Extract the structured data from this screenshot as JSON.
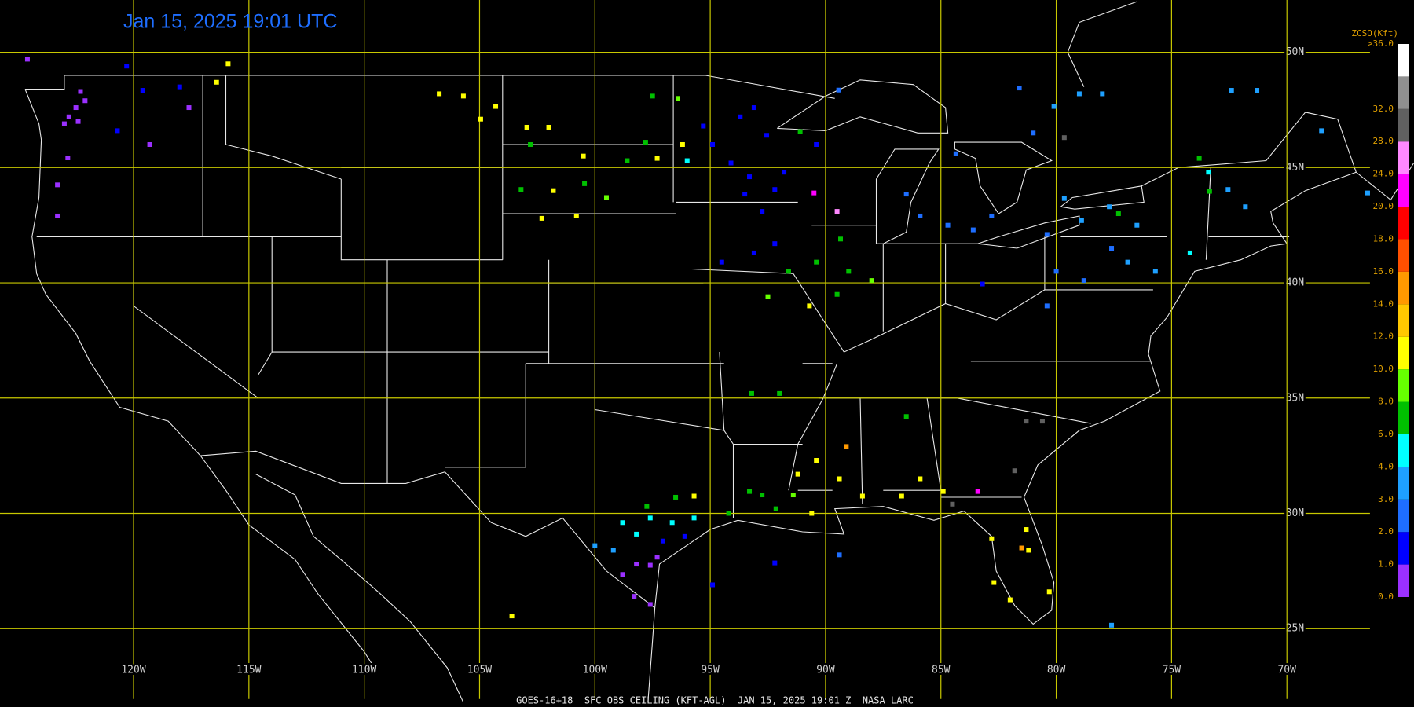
{
  "map": {
    "title": "Jan 15, 2025 19:01 UTC",
    "footer": "GOES-16+18  SFC OBS CEILING (KFT-AGL)  JAN 15, 2025 19:01 Z  NASA LARC",
    "xlim": [
      -125.79,
      -64.49
    ],
    "ylim": [
      21.6,
      52.27
    ],
    "lon_ticks": [
      {
        "value": -120,
        "label": "120W"
      },
      {
        "value": -115,
        "label": "115W"
      },
      {
        "value": -110,
        "label": "110W"
      },
      {
        "value": -105,
        "label": "105W"
      },
      {
        "value": -100,
        "label": "100W"
      },
      {
        "value": -95,
        "label": "95W"
      },
      {
        "value": -90,
        "label": "90W"
      },
      {
        "value": -85,
        "label": "85W"
      },
      {
        "value": -80,
        "label": "80W"
      },
      {
        "value": -75,
        "label": "75W"
      },
      {
        "value": -70,
        "label": "70W"
      }
    ],
    "lat_ticks": [
      {
        "value": 50,
        "label": "50N"
      },
      {
        "value": 45,
        "label": "45N"
      },
      {
        "value": 40,
        "label": "40N"
      },
      {
        "value": 35,
        "label": "35N"
      },
      {
        "value": 30,
        "label": "30N"
      },
      {
        "value": 25,
        "label": "25N"
      }
    ],
    "legend": {
      "title": "ZCSO(Kft)",
      "labels": [
        {
          "value": 0,
          "label": "0.0"
        },
        {
          "value": 1,
          "label": "1.0"
        },
        {
          "value": 2,
          "label": "2.0"
        },
        {
          "value": 3,
          "label": "3.0"
        },
        {
          "value": 4,
          "label": "4.0"
        },
        {
          "value": 6,
          "label": "6.0"
        },
        {
          "value": 8,
          "label": "8.0"
        },
        {
          "value": 10,
          "label": "10.0"
        },
        {
          "value": 12,
          "label": "12.0"
        },
        {
          "value": 14,
          "label": "14.0"
        },
        {
          "value": 16,
          "label": "16.0"
        },
        {
          "value": 18,
          "label": "18.0"
        },
        {
          "value": 20,
          "label": "20.0"
        },
        {
          "value": 24,
          "label": "24.0"
        },
        {
          "value": 28,
          "label": "28.0"
        },
        {
          "value": 32,
          "label": "32.0"
        },
        {
          "value": 36,
          "label": ">36.0"
        }
      ],
      "colors": [
        "#9b30ff",
        "#0000ff",
        "#1e6eff",
        "#1ea0ff",
        "#00ffff",
        "#00c000",
        "#66ff00",
        "#ffff00",
        "#ffc800",
        "#ff9900",
        "#ff5000",
        "#ff0000",
        "#ff00ff",
        "#ff88ff",
        "#606060",
        "#909090",
        "#ffffff"
      ]
    },
    "stations": [
      [
        -122.3,
        48.3,
        0.5
      ],
      [
        -122.5,
        47.6,
        0.5
      ],
      [
        -122.8,
        47.2,
        0.5
      ],
      [
        -123.0,
        46.9,
        0.5
      ],
      [
        -122.4,
        47.0,
        0.5
      ],
      [
        -122.1,
        47.9,
        0.5
      ],
      [
        -122.85,
        45.42,
        0.5
      ],
      [
        -123.3,
        44.25,
        0.5
      ],
      [
        -123.3,
        42.9,
        0.5
      ],
      [
        -117.6,
        47.6,
        0.5
      ],
      [
        -119.3,
        46.0,
        0.5
      ],
      [
        -124.6,
        49.7,
        0.5
      ],
      [
        -120.7,
        46.6,
        1.5
      ],
      [
        -119.6,
        48.35,
        1.5
      ],
      [
        -118.0,
        48.5,
        1.5
      ],
      [
        -120.3,
        49.4,
        1.5
      ],
      [
        -116.4,
        48.7,
        11
      ],
      [
        -115.9,
        49.5,
        11
      ],
      [
        -106.75,
        48.2,
        11
      ],
      [
        -105.7,
        48.1,
        11
      ],
      [
        -104.3,
        47.65,
        11
      ],
      [
        -104.95,
        47.1,
        11
      ],
      [
        -102.95,
        46.75,
        11
      ],
      [
        -102.0,
        46.75,
        11
      ],
      [
        -100.5,
        45.5,
        11
      ],
      [
        -102.8,
        46.0,
        7
      ],
      [
        -103.2,
        44.05,
        7
      ],
      [
        -101.8,
        44.0,
        11
      ],
      [
        -100.45,
        44.3,
        7
      ],
      [
        -102.3,
        42.8,
        11
      ],
      [
        -100.8,
        42.9,
        11
      ],
      [
        -98.6,
        45.3,
        7
      ],
      [
        -99.5,
        43.7,
        9
      ],
      [
        -97.5,
        48.1,
        7
      ],
      [
        -96.4,
        48.0,
        9
      ],
      [
        -97.8,
        46.1,
        7
      ],
      [
        -97.3,
        45.4,
        11
      ],
      [
        -96.2,
        46.0,
        11
      ],
      [
        -96.0,
        45.3,
        5
      ],
      [
        -95.3,
        46.8,
        1.5
      ],
      [
        -94.9,
        46.0,
        1.5
      ],
      [
        -94.1,
        45.2,
        1.5
      ],
      [
        -93.7,
        47.2,
        1.5
      ],
      [
        -93.1,
        47.6,
        1.5
      ],
      [
        -92.55,
        46.4,
        1.5
      ],
      [
        -93.3,
        44.6,
        1.5
      ],
      [
        -93.5,
        43.85,
        1.5
      ],
      [
        -92.75,
        43.1,
        1.5
      ],
      [
        -92.2,
        41.7,
        1.5
      ],
      [
        -93.1,
        41.3,
        1.5
      ],
      [
        -94.5,
        40.9,
        1.5
      ],
      [
        -91.1,
        46.56,
        7
      ],
      [
        -91.8,
        44.8,
        1.5
      ],
      [
        -92.2,
        44.05,
        1.5
      ],
      [
        -90.4,
        46.0,
        1.5
      ],
      [
        -89.43,
        48.36,
        2.5
      ],
      [
        -90.5,
        43.9,
        22
      ],
      [
        -89.5,
        43.1,
        26
      ],
      [
        -89.35,
        41.9,
        7
      ],
      [
        -90.4,
        40.9,
        7
      ],
      [
        -89.0,
        40.5,
        7
      ],
      [
        -89.5,
        39.5,
        7
      ],
      [
        -92.5,
        39.4,
        9
      ],
      [
        -90.7,
        39.0,
        11
      ],
      [
        -88.0,
        40.1,
        9
      ],
      [
        -91.6,
        40.5,
        7
      ],
      [
        -86.5,
        43.85,
        2.5
      ],
      [
        -85.9,
        42.9,
        2.5
      ],
      [
        -84.7,
        42.5,
        2.5
      ],
      [
        -84.35,
        45.6,
        2.5
      ],
      [
        -83.6,
        42.3,
        2.5
      ],
      [
        -82.8,
        42.9,
        2.5
      ],
      [
        -83.2,
        39.95,
        1.5
      ],
      [
        -81.6,
        48.45,
        2.5
      ],
      [
        -81.0,
        46.5,
        2.5
      ],
      [
        -80.1,
        47.65,
        3.5
      ],
      [
        -79.0,
        48.2,
        3.5
      ],
      [
        -78.0,
        48.2,
        3.5
      ],
      [
        -79.65,
        43.66,
        3.5
      ],
      [
        -78.9,
        42.7,
        3.5
      ],
      [
        -77.7,
        43.3,
        3.5
      ],
      [
        -76.5,
        42.5,
        3.5
      ],
      [
        -76.9,
        40.9,
        3.5
      ],
      [
        -75.7,
        40.5,
        3.5
      ],
      [
        -73.4,
        44.8,
        5
      ],
      [
        -72.55,
        44.05,
        3.5
      ],
      [
        -71.8,
        43.3,
        3.5
      ],
      [
        -74.2,
        41.3,
        5
      ],
      [
        -72.4,
        48.35,
        3.5
      ],
      [
        -71.3,
        48.35,
        3.5
      ],
      [
        -68.5,
        46.6,
        3.5
      ],
      [
        -66.5,
        43.9,
        3.5
      ],
      [
        -80.4,
        42.1,
        2.5
      ],
      [
        -80.0,
        40.5,
        2.5
      ],
      [
        -78.8,
        40.1,
        2.5
      ],
      [
        -77.6,
        41.5,
        2.5
      ],
      [
        -80.4,
        39.0,
        2.5
      ],
      [
        -77.3,
        43.0,
        7
      ],
      [
        -73.8,
        45.4,
        7
      ],
      [
        -73.35,
        43.97,
        7
      ],
      [
        -79.65,
        46.3,
        30
      ],
      [
        -81.3,
        34.0,
        30
      ],
      [
        -80.6,
        34.0,
        30
      ],
      [
        -81.8,
        31.85,
        30
      ],
      [
        -93.2,
        35.2,
        7
      ],
      [
        -92.0,
        35.2,
        7
      ],
      [
        -86.5,
        34.2,
        7
      ],
      [
        -89.1,
        32.9,
        15
      ],
      [
        -90.4,
        32.3,
        11
      ],
      [
        -91.2,
        31.7,
        11
      ],
      [
        -89.4,
        31.5,
        11
      ],
      [
        -85.9,
        31.5,
        11
      ],
      [
        -86.7,
        30.75,
        11
      ],
      [
        -84.9,
        30.95,
        11
      ],
      [
        -88.4,
        30.75,
        11
      ],
      [
        -83.4,
        30.95,
        22
      ],
      [
        -84.5,
        30.4,
        30
      ],
      [
        -93.3,
        30.95,
        7
      ],
      [
        -92.15,
        30.2,
        7
      ],
      [
        -94.2,
        30.0,
        7
      ],
      [
        -92.75,
        30.8,
        7
      ],
      [
        -91.4,
        30.8,
        9
      ],
      [
        -90.6,
        30.0,
        11
      ],
      [
        -98.8,
        29.6,
        5
      ],
      [
        -97.6,
        29.8,
        5
      ],
      [
        -96.65,
        29.6,
        5
      ],
      [
        -95.7,
        29.8,
        5
      ],
      [
        -98.2,
        29.1,
        5
      ],
      [
        -100.0,
        28.6,
        3.5
      ],
      [
        -99.2,
        28.4,
        3.5
      ],
      [
        -97.75,
        30.3,
        7
      ],
      [
        -96.5,
        30.7,
        7
      ],
      [
        -95.7,
        30.75,
        11
      ],
      [
        -97.05,
        28.8,
        1.5
      ],
      [
        -96.1,
        29.0,
        1.5
      ],
      [
        -94.9,
        26.9,
        1.5
      ],
      [
        -92.2,
        27.85,
        1.5
      ],
      [
        -89.4,
        28.2,
        2.5
      ],
      [
        -98.8,
        27.35,
        0.5
      ],
      [
        -98.2,
        27.8,
        0.5
      ],
      [
        -97.6,
        27.75,
        0.5
      ],
      [
        -98.3,
        26.4,
        0.5
      ],
      [
        -97.6,
        26.05,
        0.5
      ],
      [
        -97.3,
        28.1,
        0.5
      ],
      [
        -103.6,
        25.55,
        11
      ],
      [
        -82.8,
        28.9,
        11
      ],
      [
        -81.3,
        29.3,
        11
      ],
      [
        -81.2,
        28.4,
        11
      ],
      [
        -81.5,
        28.5,
        15
      ],
      [
        -82.7,
        27.0,
        11
      ],
      [
        -82.0,
        26.25,
        11
      ],
      [
        -80.3,
        26.6,
        11
      ],
      [
        -77.6,
        25.15,
        3.5
      ]
    ]
  }
}
